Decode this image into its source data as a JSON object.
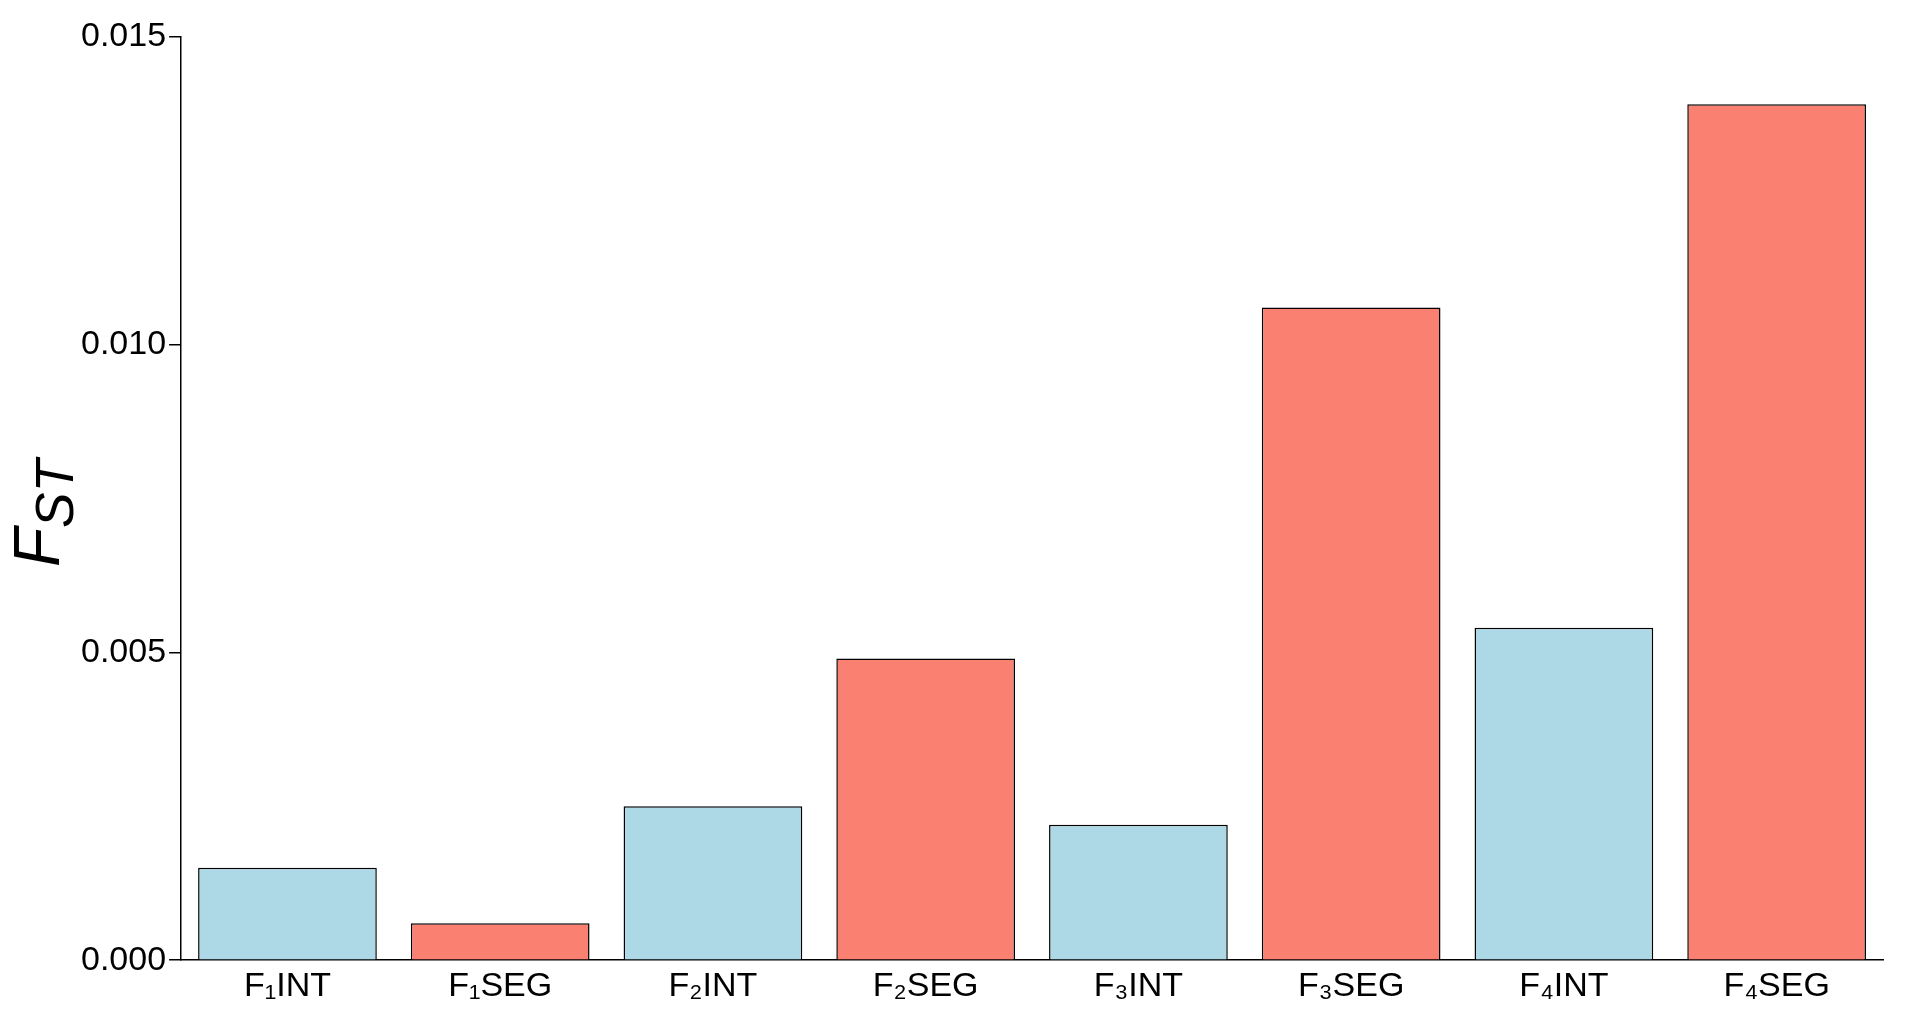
{
  "chart_data": {
    "type": "bar",
    "ylabel": "F$_{ST}$",
    "categories": [
      "F₁INT",
      "F₁SEG",
      "F₂INT",
      "F₂SEG",
      "F₃INT",
      "F₃SEG",
      "F₄INT",
      "F₄SEG"
    ],
    "values": [
      0.0015,
      0.0006,
      0.0025,
      0.0049,
      0.0022,
      0.0106,
      0.0054,
      0.0139
    ],
    "colors": [
      "#add8e6",
      "#fa8072",
      "#add8e6",
      "#fa8072",
      "#add8e6",
      "#fa8072",
      "#add8e6",
      "#fa8072"
    ],
    "ylim": [
      0,
      0.015
    ],
    "yticks": [
      {
        "value": 0,
        "label": "0.000"
      },
      {
        "value": 0.005,
        "label": "0.005"
      },
      {
        "value": 0.01,
        "label": "0.010"
      },
      {
        "value": 0.015,
        "label": "0.015"
      }
    ],
    "grid": false,
    "legend": false
  }
}
